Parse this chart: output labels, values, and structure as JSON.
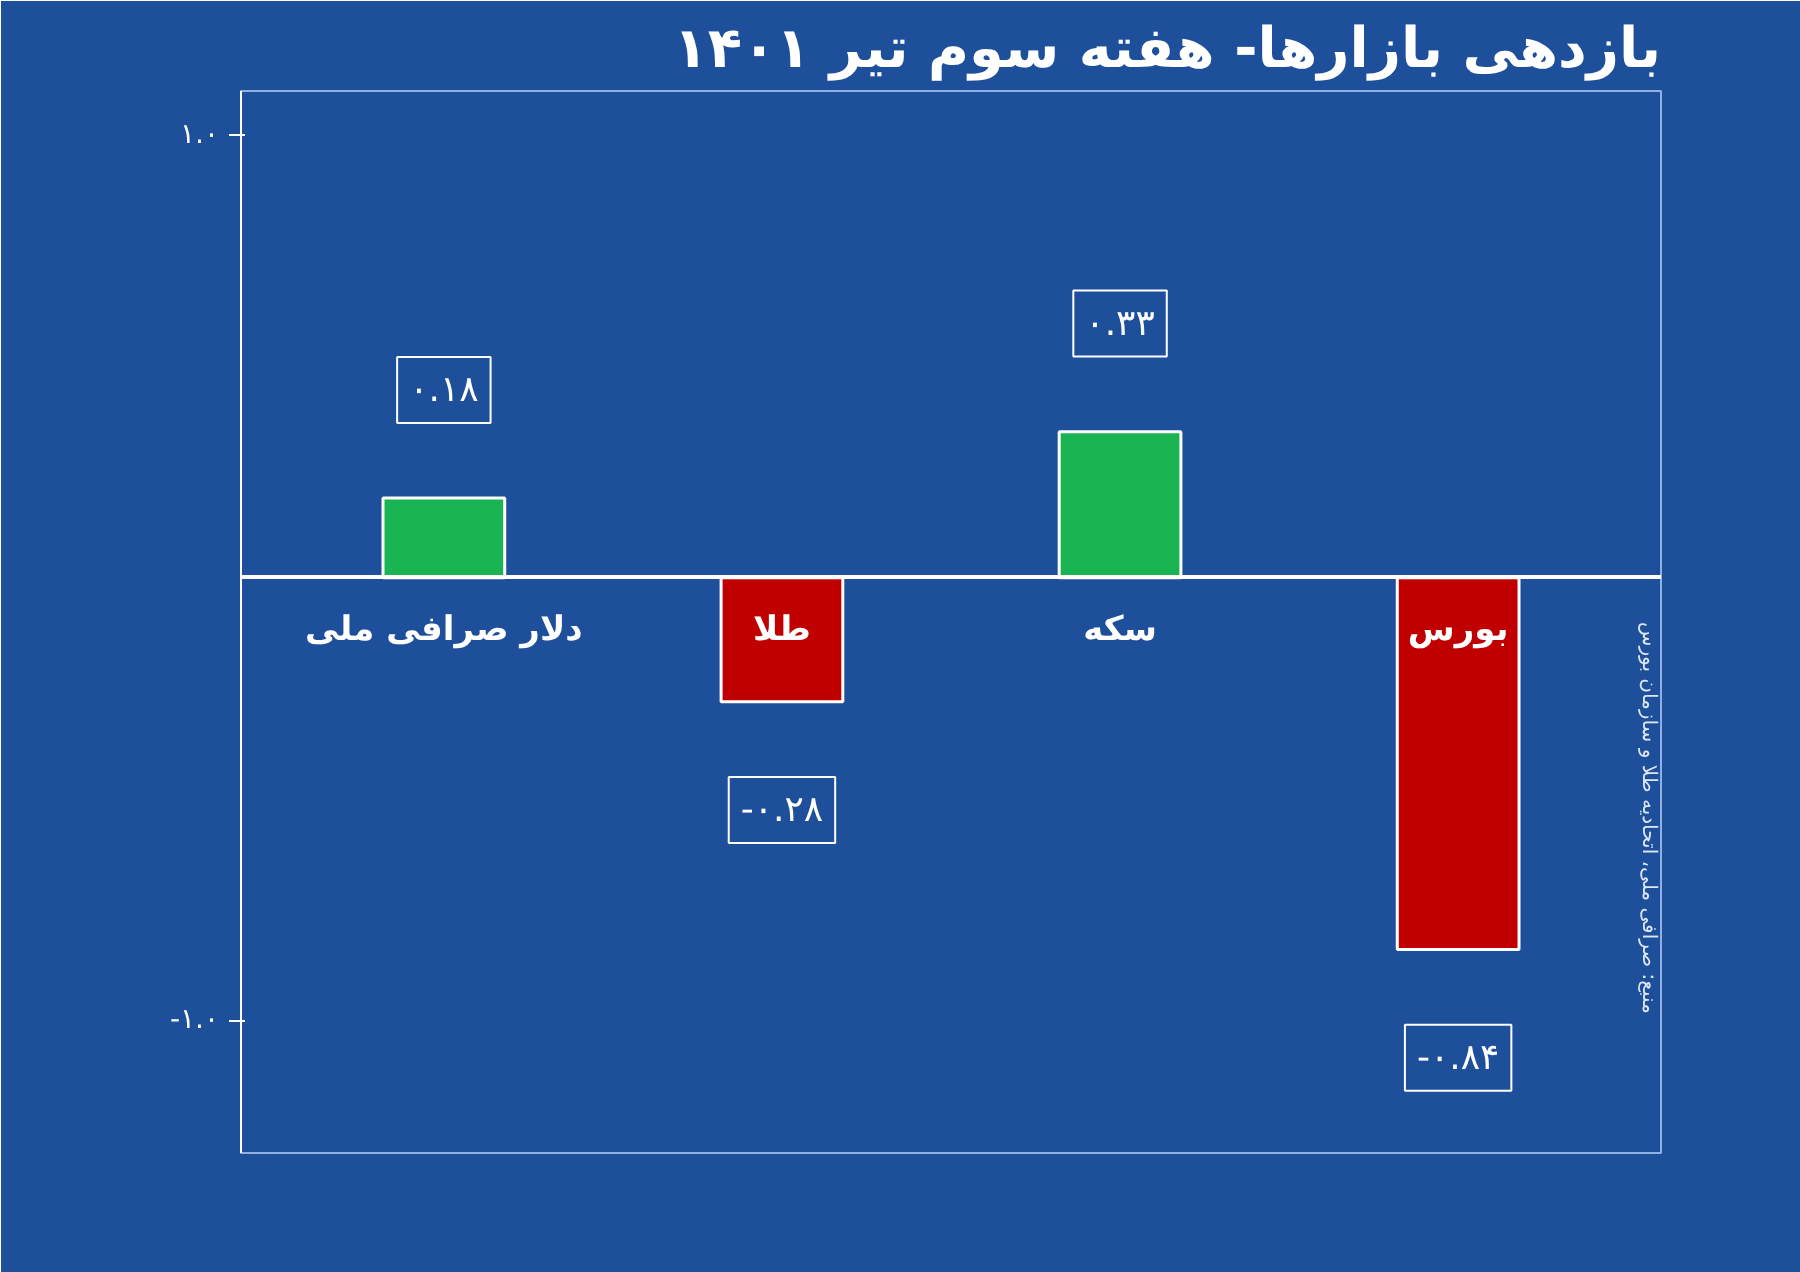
{
  "chart_data": {
    "type": "bar",
    "title": "بازدهی بازارها- هفته سوم تیر ۱۴۰۱",
    "categories": [
      "دلار صرافی ملی",
      "طلا",
      "سکه",
      "بورس"
    ],
    "values": [
      0.18,
      -0.28,
      0.33,
      -0.84
    ],
    "colors": [
      "#1ab552",
      "#c00000",
      "#1ab552",
      "#c00000"
    ],
    "value_labels": [
      "۰.۱۸",
      "-۰.۲۸",
      "۰.۳۳",
      "-۰.۸۴"
    ],
    "ylim": [
      -1.3,
      1.1
    ],
    "yticks": [
      {
        "value": 1,
        "label": "۱.۰"
      },
      {
        "value": -1,
        "label": "-۱.۰"
      }
    ],
    "grid": false,
    "annotations": [
      "منبع: صرافی ملی، اتحادیه طلا و سازمان بورس"
    ]
  }
}
